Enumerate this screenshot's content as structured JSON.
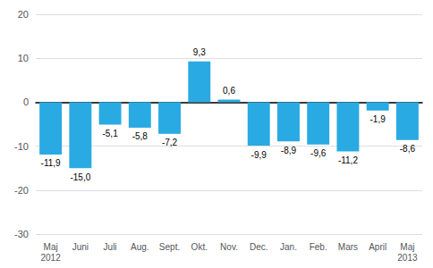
{
  "chart_data": {
    "type": "bar",
    "categories": [
      "Maj\n2012",
      "Juni",
      "Juli",
      "Aug.",
      "Sept.",
      "Okt.",
      "Nov.",
      "Dec.",
      "Jan.",
      "Feb.",
      "Mars",
      "April",
      "Maj\n2013"
    ],
    "values": [
      -11.9,
      -15.0,
      -5.1,
      -5.8,
      -7.2,
      9.3,
      0.6,
      -9.9,
      -8.9,
      -9.6,
      -11.2,
      -1.9,
      -8.6
    ],
    "value_labels": [
      "-11,9",
      "-15,0",
      "-5,1",
      "-5,8",
      "-7,2",
      "9,3",
      "0,6",
      "-9,9",
      "-8,9",
      "-9,6",
      "-11,2",
      "-1,9",
      "-8,6"
    ],
    "color": "#29aae2",
    "ylim": [
      -30,
      20
    ],
    "yticks": [
      -30,
      -20,
      -10,
      0,
      10,
      20
    ],
    "grid": true,
    "data_labels": true
  }
}
